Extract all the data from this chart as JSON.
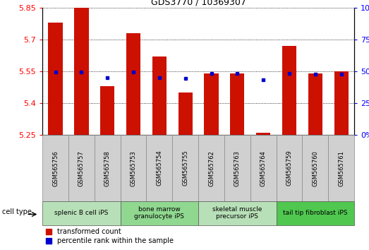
{
  "title": "GDS3770 / 10369307",
  "samples": [
    "GSM565756",
    "GSM565757",
    "GSM565758",
    "GSM565753",
    "GSM565754",
    "GSM565755",
    "GSM565762",
    "GSM565763",
    "GSM565764",
    "GSM565759",
    "GSM565760",
    "GSM565761"
  ],
  "red_values": [
    5.78,
    5.85,
    5.48,
    5.73,
    5.62,
    5.45,
    5.54,
    5.54,
    5.26,
    5.67,
    5.54,
    5.55
  ],
  "blue_values": [
    5.545,
    5.545,
    5.52,
    5.545,
    5.52,
    5.515,
    5.54,
    5.54,
    5.51,
    5.54,
    5.535,
    5.535
  ],
  "y_min": 5.25,
  "y_max": 5.85,
  "y_ticks": [
    5.25,
    5.4,
    5.55,
    5.7,
    5.85
  ],
  "y_right_ticks": [
    0,
    25,
    50,
    75,
    100
  ],
  "groups": [
    {
      "label": "splenic B cell iPS",
      "start": 0,
      "end": 3,
      "color": "#b8e0b8"
    },
    {
      "label": "bone marrow\ngranulocyte iPS",
      "start": 3,
      "end": 6,
      "color": "#90d890"
    },
    {
      "label": "skeletal muscle\nprecursor iPS",
      "start": 6,
      "end": 9,
      "color": "#b8e0b8"
    },
    {
      "label": "tail tip fibroblast iPS",
      "start": 9,
      "end": 12,
      "color": "#50c850"
    }
  ],
  "bar_width": 0.55,
  "red_color": "#cc1100",
  "blue_color": "#0000cc",
  "ylabel_left_color": "red",
  "ylabel_right_color": "blue",
  "cell_type_label": "cell type",
  "sample_box_color": "#d0d0d0",
  "sample_box_edge": "#888888"
}
